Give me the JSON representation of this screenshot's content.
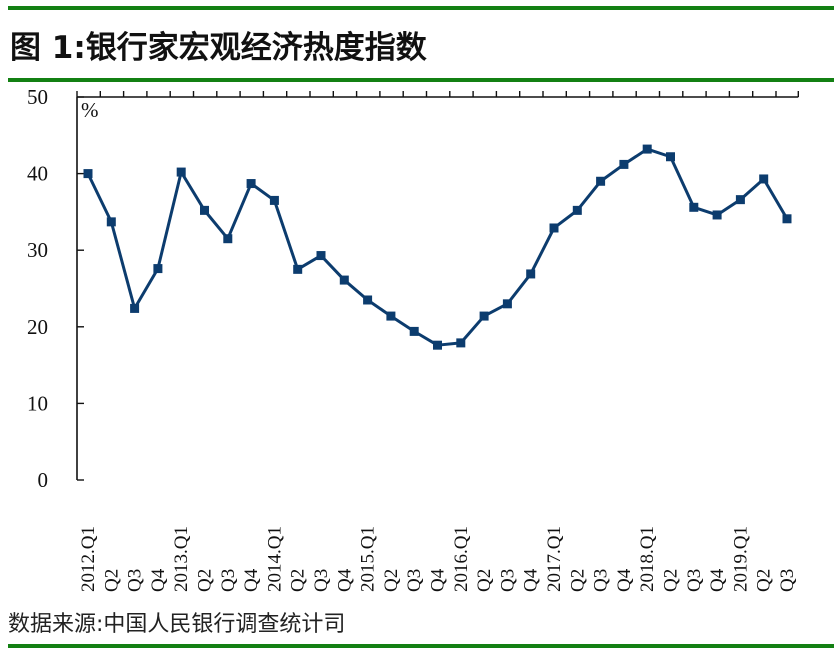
{
  "figure": {
    "title": "图 1:银行家宏观经济热度指数",
    "source": "数据来源:中国人民银行调查统计司",
    "unit": "%",
    "colors": {
      "rule": "#138013",
      "line": "#0c3c6e",
      "axis": "#111111"
    }
  },
  "chart_data": {
    "type": "line",
    "title": "银行家宏观经济热度指数",
    "xlabel": "",
    "ylabel": "%",
    "ylim": [
      0,
      50
    ],
    "yticks": [
      0,
      10,
      20,
      30,
      40,
      50
    ],
    "grid": false,
    "legend": null,
    "categories": [
      "2012.Q1",
      "Q2",
      "Q3",
      "Q4",
      "2013.Q1",
      "Q2",
      "Q3",
      "Q4",
      "2014.Q1",
      "Q2",
      "Q3",
      "Q4",
      "2015.Q1",
      "Q2",
      "Q3",
      "Q4",
      "2016.Q1",
      "Q2",
      "Q3",
      "Q4",
      "2017.Q1",
      "Q2",
      "Q3",
      "Q4",
      "2018.Q1",
      "Q2",
      "Q3",
      "Q4",
      "2019.Q1",
      "Q2",
      "Q3"
    ],
    "series": [
      {
        "name": "银行家宏观经济热度指数",
        "marker": "square",
        "values": [
          40.0,
          33.7,
          22.4,
          27.6,
          40.2,
          35.2,
          31.5,
          38.7,
          36.5,
          27.5,
          29.3,
          26.1,
          23.5,
          21.4,
          19.4,
          17.6,
          17.9,
          21.4,
          23.0,
          26.9,
          32.9,
          35.2,
          39.0,
          41.2,
          43.2,
          42.2,
          35.6,
          34.6,
          36.6,
          39.3,
          34.1
        ]
      }
    ]
  }
}
